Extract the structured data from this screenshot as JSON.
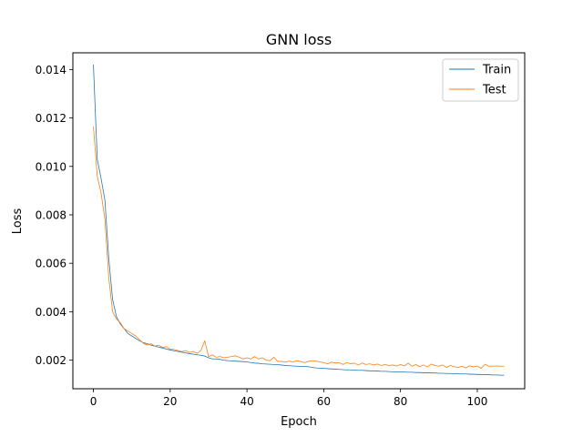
{
  "chart_data": {
    "type": "line",
    "title": "GNN loss",
    "xlabel": "Epoch",
    "ylabel": "Loss",
    "xlim": [
      -5.35,
      112.35
    ],
    "ylim": [
      0.00082,
      0.01469
    ],
    "xticks": [
      0,
      20,
      40,
      60,
      80,
      100
    ],
    "xtick_labels": [
      "0",
      "20",
      "40",
      "60",
      "80",
      "100"
    ],
    "yticks": [
      0.002,
      0.004,
      0.006,
      0.008,
      0.01,
      0.012,
      0.014
    ],
    "ytick_labels": [
      "0.002",
      "0.004",
      "0.006",
      "0.008",
      "0.010",
      "0.012",
      "0.014"
    ],
    "grid": false,
    "legend_position": "top-right",
    "series": [
      {
        "name": "Train",
        "color": "#1f77b4",
        "x": [
          0,
          1,
          2,
          3,
          4,
          5,
          6,
          7,
          8,
          9,
          10,
          11,
          12,
          13,
          14,
          15,
          16,
          17,
          18,
          19,
          20,
          21,
          22,
          23,
          24,
          25,
          26,
          27,
          28,
          29,
          30,
          31,
          32,
          33,
          34,
          35,
          36,
          37,
          38,
          39,
          40,
          41,
          42,
          43,
          44,
          45,
          46,
          47,
          48,
          49,
          50,
          51,
          52,
          53,
          54,
          55,
          56,
          57,
          58,
          59,
          60,
          61,
          62,
          63,
          64,
          65,
          66,
          67,
          68,
          69,
          70,
          71,
          72,
          73,
          74,
          75,
          76,
          77,
          78,
          79,
          80,
          81,
          82,
          83,
          84,
          85,
          86,
          87,
          88,
          89,
          90,
          91,
          92,
          93,
          94,
          95,
          96,
          97,
          98,
          99,
          100,
          101,
          102,
          103,
          104,
          105,
          106,
          107
        ],
        "values": [
          0.0142,
          0.0103,
          0.0095,
          0.0086,
          0.0062,
          0.0045,
          0.0038,
          0.0035,
          0.0033,
          0.0031,
          0.003,
          0.0029,
          0.0028,
          0.00272,
          0.00268,
          0.00262,
          0.00258,
          0.00254,
          0.0025,
          0.00246,
          0.00242,
          0.00239,
          0.00236,
          0.00233,
          0.0023,
          0.00227,
          0.00225,
          0.00222,
          0.0022,
          0.00217,
          0.0021,
          0.00205,
          0.00205,
          0.00203,
          0.002,
          0.00198,
          0.00197,
          0.00196,
          0.00195,
          0.00194,
          0.00193,
          0.0019,
          0.00188,
          0.00187,
          0.00185,
          0.00184,
          0.00183,
          0.00182,
          0.00181,
          0.0018,
          0.00178,
          0.00177,
          0.00176,
          0.00175,
          0.00174,
          0.00174,
          0.00173,
          0.0017,
          0.00168,
          0.00167,
          0.00166,
          0.00165,
          0.00164,
          0.00163,
          0.00162,
          0.00161,
          0.0016,
          0.0016,
          0.00159,
          0.00158,
          0.00158,
          0.00157,
          0.00156,
          0.00156,
          0.00155,
          0.00154,
          0.00154,
          0.00153,
          0.00152,
          0.00152,
          0.00151,
          0.00151,
          0.0015,
          0.0015,
          0.00149,
          0.00149,
          0.00148,
          0.00148,
          0.00147,
          0.00147,
          0.00146,
          0.00146,
          0.00145,
          0.00145,
          0.00144,
          0.00144,
          0.00143,
          0.00143,
          0.00142,
          0.00142,
          0.00141,
          0.00141,
          0.0014,
          0.0014,
          0.00139,
          0.00139,
          0.00138,
          0.00138
        ]
      },
      {
        "name": "Test",
        "color": "#ff7f0e",
        "x": [
          0,
          1,
          2,
          3,
          4,
          5,
          6,
          7,
          8,
          9,
          10,
          11,
          12,
          13,
          14,
          15,
          16,
          17,
          18,
          19,
          20,
          21,
          22,
          23,
          24,
          25,
          26,
          27,
          28,
          29,
          30,
          31,
          32,
          33,
          34,
          35,
          36,
          37,
          38,
          39,
          40,
          41,
          42,
          43,
          44,
          45,
          46,
          47,
          48,
          49,
          50,
          51,
          52,
          53,
          54,
          55,
          56,
          57,
          58,
          59,
          60,
          61,
          62,
          63,
          64,
          65,
          66,
          67,
          68,
          69,
          70,
          71,
          72,
          73,
          74,
          75,
          76,
          77,
          78,
          79,
          80,
          81,
          82,
          83,
          84,
          85,
          86,
          87,
          88,
          89,
          90,
          91,
          92,
          93,
          94,
          95,
          96,
          97,
          98,
          99,
          100,
          101,
          102,
          103,
          104,
          105,
          106,
          107
        ],
        "values": [
          0.01165,
          0.0096,
          0.0089,
          0.0078,
          0.0054,
          0.004,
          0.0037,
          0.00355,
          0.0033,
          0.0032,
          0.0031,
          0.003,
          0.00285,
          0.0027,
          0.00262,
          0.00268,
          0.00258,
          0.00262,
          0.00252,
          0.00256,
          0.00245,
          0.00244,
          0.0024,
          0.00235,
          0.0024,
          0.00232,
          0.00236,
          0.00228,
          0.0024,
          0.0028,
          0.00215,
          0.00222,
          0.00212,
          0.00215,
          0.0021,
          0.00212,
          0.00215,
          0.00218,
          0.00212,
          0.00205,
          0.0021,
          0.00205,
          0.00215,
          0.00205,
          0.0021,
          0.002,
          0.00198,
          0.00212,
          0.00195,
          0.00195,
          0.00192,
          0.00196,
          0.00193,
          0.00198,
          0.00194,
          0.0019,
          0.00195,
          0.00198,
          0.00196,
          0.00193,
          0.0019,
          0.00185,
          0.00192,
          0.00188,
          0.0019,
          0.00182,
          0.0019,
          0.00185,
          0.00188,
          0.0018,
          0.00188,
          0.00182,
          0.00185,
          0.0018,
          0.00184,
          0.00178,
          0.00182,
          0.00178,
          0.0018,
          0.00176,
          0.00182,
          0.00176,
          0.00188,
          0.00175,
          0.00182,
          0.00173,
          0.0018,
          0.00172,
          0.00184,
          0.00178,
          0.00175,
          0.0018,
          0.0017,
          0.00178,
          0.00173,
          0.0017,
          0.00175,
          0.00168,
          0.00177,
          0.00172,
          0.00176,
          0.00166,
          0.00183,
          0.00175,
          0.00175,
          0.00176,
          0.00175,
          0.00175
        ]
      }
    ]
  }
}
